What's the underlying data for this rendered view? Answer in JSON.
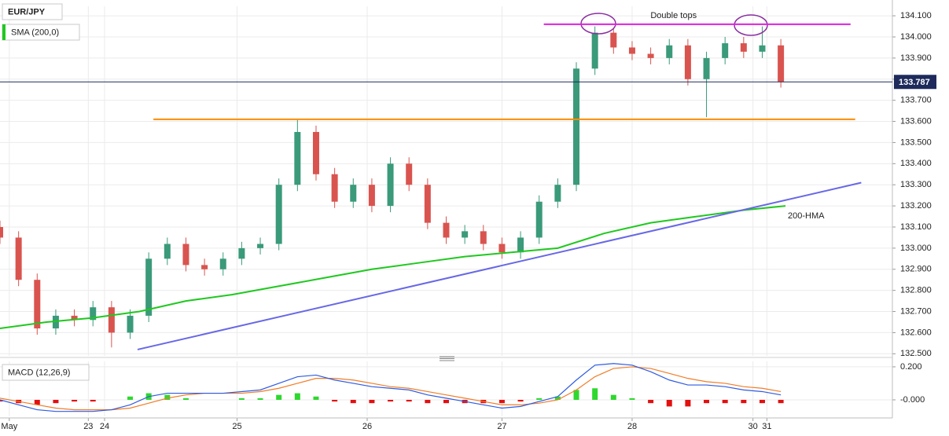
{
  "chart_data": [
    {
      "type": "candlestick",
      "title": "EUR/JPY",
      "x": [
        0,
        4,
        8,
        12,
        16,
        20,
        24,
        28,
        32,
        36,
        40,
        44,
        48,
        52,
        56,
        60,
        64,
        68,
        72,
        76,
        80,
        84,
        88,
        92,
        96,
        100,
        104,
        108,
        112,
        116,
        120,
        124,
        128,
        132,
        136,
        140,
        144,
        148,
        152,
        156,
        160,
        164,
        168
      ],
      "open": [
        133.1,
        133.05,
        132.85,
        132.62,
        132.68,
        132.66,
        132.72,
        132.6,
        132.68,
        132.95,
        133.02,
        132.92,
        132.9,
        132.95,
        133.0,
        133.02,
        133.3,
        133.55,
        133.35,
        133.22,
        133.3,
        133.2,
        133.4,
        133.3,
        133.12,
        133.05,
        133.08,
        133.02,
        132.98,
        133.05,
        133.22,
        133.3,
        133.85,
        134.02,
        133.95,
        133.92,
        133.9,
        133.96,
        133.8,
        133.9,
        133.97,
        133.93,
        133.96
      ],
      "high": [
        133.13,
        133.08,
        132.88,
        132.71,
        132.71,
        132.75,
        132.75,
        132.71,
        132.98,
        133.05,
        133.05,
        132.95,
        132.98,
        133.03,
        133.05,
        133.33,
        133.61,
        133.58,
        133.38,
        133.33,
        133.33,
        133.43,
        133.43,
        133.33,
        133.15,
        133.11,
        133.11,
        133.05,
        133.08,
        133.25,
        133.33,
        133.88,
        134.05,
        134.04,
        133.98,
        133.95,
        133.99,
        133.99,
        133.93,
        134.0,
        134.0,
        134.05,
        133.99
      ],
      "low": [
        133.02,
        132.82,
        132.59,
        132.59,
        132.63,
        132.63,
        132.53,
        132.57,
        132.65,
        132.92,
        132.89,
        132.87,
        132.87,
        132.92,
        132.97,
        132.99,
        133.27,
        133.32,
        133.19,
        133.19,
        133.17,
        133.17,
        133.27,
        133.09,
        133.02,
        133.02,
        132.99,
        132.95,
        132.95,
        133.02,
        133.19,
        133.27,
        133.82,
        133.92,
        133.89,
        133.87,
        133.87,
        133.77,
        133.62,
        133.87,
        133.9,
        133.9,
        133.76
      ],
      "close": [
        133.05,
        132.85,
        132.62,
        132.68,
        132.66,
        132.72,
        132.6,
        132.68,
        132.95,
        133.02,
        132.92,
        132.9,
        132.95,
        133.0,
        133.02,
        133.3,
        133.55,
        133.35,
        133.22,
        133.3,
        133.2,
        133.4,
        133.3,
        133.12,
        133.05,
        133.08,
        133.02,
        132.98,
        133.05,
        133.22,
        133.3,
        133.85,
        134.02,
        133.95,
        133.92,
        133.9,
        133.96,
        133.8,
        133.9,
        133.97,
        133.93,
        133.96,
        133.787
      ],
      "up_color": "#3a9a7a",
      "down_color": "#d9544f",
      "series": [
        {
          "name": "SMA (200,0)",
          "label": "200-HMA",
          "color": "#1fc81f",
          "x": [
            0,
            10,
            20,
            30,
            40,
            50,
            60,
            70,
            80,
            90,
            100,
            110,
            120,
            130,
            140,
            150,
            160,
            169
          ],
          "values": [
            132.62,
            132.65,
            132.67,
            132.7,
            132.75,
            132.78,
            132.82,
            132.86,
            132.9,
            132.93,
            132.96,
            132.98,
            133.0,
            133.07,
            133.12,
            133.15,
            133.18,
            133.2
          ]
        }
      ],
      "lines": [
        {
          "label": "Double tops",
          "color": "#e020e0",
          "x": [
            117,
            183
          ],
          "values": [
            134.06,
            134.06
          ]
        },
        {
          "color": "#ff8c00",
          "x": [
            33,
            184
          ],
          "values": [
            133.61,
            133.61
          ]
        },
        {
          "color": "#6868e6",
          "x": [
            29.6,
            185.3
          ],
          "values": [
            132.52,
            133.31
          ]
        }
      ],
      "last_price": 133.787,
      "last_price_color": "#1d2a5b",
      "xlim": [
        0,
        192
      ],
      "ylim": [
        132.49,
        134.145
      ],
      "yticks": [
        {
          "value": 132.5,
          "label": "132.500"
        },
        {
          "value": 132.6,
          "label": "132.600"
        },
        {
          "value": 132.7,
          "label": "132.700"
        },
        {
          "value": 132.8,
          "label": "132.800"
        },
        {
          "value": 132.9,
          "label": "132.900"
        },
        {
          "value": 133.0,
          "label": "133.000"
        },
        {
          "value": 133.1,
          "label": "133.100"
        },
        {
          "value": 133.2,
          "label": "133.200"
        },
        {
          "value": 133.3,
          "label": "133.300"
        },
        {
          "value": 133.4,
          "label": "133.400"
        },
        {
          "value": 133.5,
          "label": "133.500"
        },
        {
          "value": 133.6,
          "label": "133.600"
        },
        {
          "value": 133.7,
          "label": "133.700"
        },
        {
          "value": 133.8,
          "label": "133.800"
        },
        {
          "value": 133.9,
          "label": "133.900"
        },
        {
          "value": 134.0,
          "label": "134.000"
        },
        {
          "value": 134.1,
          "label": "134.100"
        }
      ],
      "grid": true
    },
    {
      "type": "macd",
      "title": "MACD (12,26,9)",
      "x": [
        0,
        4,
        8,
        12,
        16,
        20,
        24,
        28,
        32,
        36,
        40,
        44,
        48,
        52,
        56,
        60,
        64,
        68,
        72,
        76,
        80,
        84,
        88,
        92,
        96,
        100,
        104,
        108,
        112,
        116,
        120,
        124,
        128,
        132,
        136,
        140,
        144,
        148,
        152,
        156,
        160,
        164,
        168
      ],
      "macd": [
        0.0,
        -0.03,
        -0.06,
        -0.07,
        -0.07,
        -0.07,
        -0.06,
        -0.03,
        0.02,
        0.04,
        0.04,
        0.04,
        0.04,
        0.05,
        0.06,
        0.1,
        0.14,
        0.15,
        0.12,
        0.1,
        0.08,
        0.07,
        0.06,
        0.03,
        0.01,
        -0.01,
        -0.03,
        -0.05,
        -0.04,
        -0.01,
        0.02,
        0.12,
        0.21,
        0.22,
        0.21,
        0.17,
        0.12,
        0.09,
        0.09,
        0.08,
        0.06,
        0.05,
        0.03
      ],
      "signal": [
        0.01,
        -0.01,
        -0.03,
        -0.05,
        -0.06,
        -0.06,
        -0.06,
        -0.05,
        -0.02,
        0.01,
        0.03,
        0.04,
        0.04,
        0.04,
        0.05,
        0.07,
        0.1,
        0.13,
        0.13,
        0.12,
        0.1,
        0.08,
        0.07,
        0.05,
        0.03,
        0.01,
        -0.01,
        -0.03,
        -0.03,
        -0.02,
        0.0,
        0.06,
        0.14,
        0.19,
        0.2,
        0.19,
        0.16,
        0.13,
        0.11,
        0.1,
        0.08,
        0.07,
        0.05
      ],
      "histogram": [
        -0.01,
        -0.02,
        -0.03,
        -0.02,
        -0.01,
        -0.01,
        0.0,
        0.02,
        0.04,
        0.03,
        0.01,
        0.0,
        0.0,
        0.01,
        0.01,
        0.03,
        0.04,
        0.02,
        -0.01,
        -0.02,
        -0.02,
        -0.01,
        -0.01,
        -0.02,
        -0.02,
        -0.02,
        -0.02,
        -0.02,
        -0.01,
        0.01,
        0.02,
        0.06,
        0.07,
        0.03,
        0.01,
        -0.02,
        -0.04,
        -0.04,
        -0.02,
        -0.02,
        -0.02,
        -0.02,
        -0.02
      ],
      "macd_color": "#2f5be0",
      "signal_color": "#f07d27",
      "hist_up_color": "#2ed82e",
      "hist_down_color": "#e31010",
      "xlim": [
        0,
        192
      ],
      "ylim": [
        -0.1,
        0.233
      ],
      "yticks": [
        {
          "value": 0.2,
          "label": "0.200"
        },
        {
          "value": 0,
          "label": "-0.000"
        }
      ],
      "xticks": [
        {
          "value": 2,
          "label": "May"
        },
        {
          "value": 19,
          "label": "23"
        },
        {
          "value": 22.5,
          "label": "24"
        },
        {
          "value": 51,
          "label": "25"
        },
        {
          "value": 79,
          "label": "26"
        },
        {
          "value": 108,
          "label": "27"
        },
        {
          "value": 136,
          "label": "28"
        },
        {
          "value": 162,
          "label": "30"
        },
        {
          "value": 165,
          "label": "31"
        }
      ],
      "grid": true
    }
  ]
}
